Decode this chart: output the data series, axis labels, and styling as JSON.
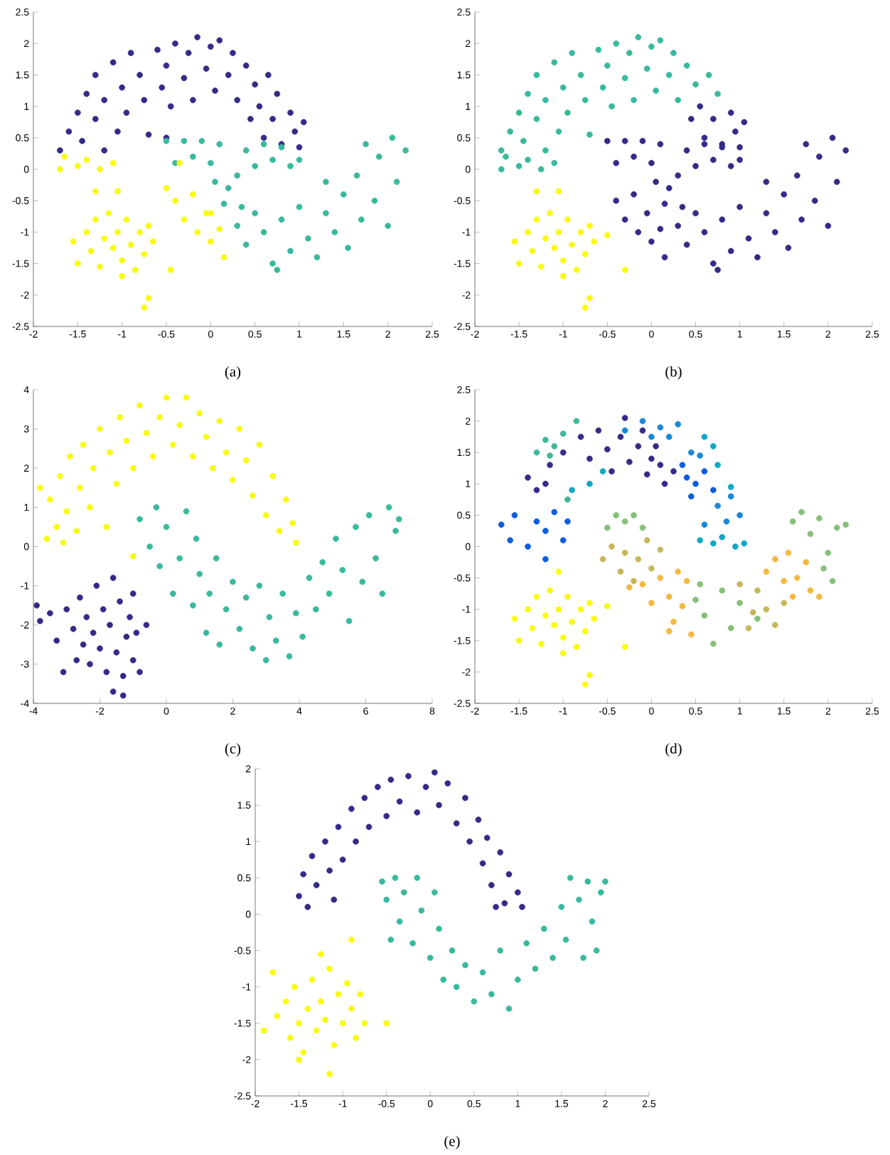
{
  "chart_data": [
    {
      "type": "scatter",
      "annotations": [
        "(a)"
      ],
      "marker": "circle",
      "xlim": [
        -2,
        2.5
      ],
      "ylim": [
        -2.5,
        2.5
      ],
      "xticks": [
        -2,
        -1.5,
        -1,
        -0.5,
        0,
        0.5,
        1,
        1.5,
        2,
        2.5
      ],
      "yticks": [
        -2.5,
        -2,
        -1.5,
        -1,
        -0.5,
        0,
        0.5,
        1,
        1.5,
        2,
        2.5
      ],
      "series": [
        {
          "color": "#352a87",
          "x": [
            -1.7,
            -1.6,
            -1.5,
            -1.45,
            -1.4,
            -1.3,
            -1.3,
            -1.2,
            -1.2,
            -1.1,
            -1.05,
            -1.0,
            -0.95,
            -0.9,
            -0.8,
            -0.75,
            -0.7,
            -0.6,
            -0.55,
            -0.5,
            -0.45,
            -0.4,
            -0.3,
            -0.25,
            -0.2,
            -0.15,
            -0.05,
            0.0,
            0.05,
            0.1,
            0.2,
            0.25,
            0.3,
            0.4,
            0.45,
            0.5,
            0.55,
            0.6,
            0.65,
            0.7,
            0.75,
            0.8,
            0.9,
            0.95,
            1.0,
            1.05,
            -0.5
          ],
          "values": [
            0.3,
            0.6,
            0.9,
            0.45,
            1.2,
            0.8,
            1.5,
            0.3,
            1.1,
            1.7,
            0.6,
            1.3,
            0.9,
            1.85,
            1.5,
            1.1,
            0.55,
            1.9,
            1.3,
            1.65,
            1.0,
            2.0,
            1.45,
            1.85,
            1.1,
            2.1,
            1.6,
            1.95,
            1.25,
            2.05,
            1.5,
            1.85,
            1.1,
            1.65,
            0.8,
            1.35,
            1.0,
            0.5,
            1.5,
            0.8,
            1.2,
            0.4,
            0.9,
            0.6,
            0.35,
            0.75,
            0.5
          ]
        },
        {
          "color": "#38b99b",
          "x": [
            -0.5,
            -0.4,
            -0.3,
            -0.2,
            -0.1,
            0.0,
            0.05,
            0.1,
            0.2,
            0.3,
            0.35,
            0.4,
            0.5,
            0.6,
            0.7,
            0.8,
            0.9,
            1.0,
            0.3,
            0.4,
            0.5,
            0.6,
            0.7,
            0.8,
            0.9,
            1.0,
            1.1,
            1.2,
            1.3,
            1.4,
            1.5,
            1.55,
            1.65,
            1.7,
            1.75,
            1.85,
            1.9,
            2.0,
            2.05,
            2.1,
            2.2,
            1.3,
            0.75,
            0.15
          ],
          "values": [
            0.45,
            0.1,
            0.45,
            0.2,
            0.45,
            0.1,
            -0.2,
            0.4,
            -0.3,
            -0.1,
            -0.6,
            0.3,
            0.05,
            0.4,
            0.15,
            0.35,
            0.05,
            0.15,
            -0.9,
            -1.2,
            -0.7,
            -1.0,
            -1.5,
            -0.8,
            -1.3,
            -0.6,
            -1.1,
            -1.4,
            -0.7,
            -1.0,
            -0.4,
            -1.25,
            -0.1,
            -0.8,
            0.4,
            -0.5,
            0.2,
            -0.9,
            0.5,
            -0.2,
            0.3,
            -0.2,
            -1.6,
            -0.55
          ]
        },
        {
          "color": "#f9fb0e",
          "x": [
            -1.7,
            -1.65,
            -1.5,
            -1.4,
            -1.25,
            -1.1,
            -1.3,
            -1.05,
            -1.55,
            -1.5,
            -1.4,
            -1.35,
            -1.3,
            -1.25,
            -1.2,
            -1.15,
            -1.1,
            -1.05,
            -1.0,
            -0.95,
            -0.9,
            -0.85,
            -0.8,
            -0.75,
            -0.7,
            -0.65,
            -1.0,
            -0.75,
            -0.7,
            -0.45,
            -0.5,
            -0.4,
            -0.35,
            -0.3,
            -0.2,
            -0.15,
            -0.05,
            0.0,
            0.1,
            0.15,
            0.0
          ],
          "values": [
            0.0,
            0.2,
            0.05,
            0.15,
            0.0,
            0.1,
            -0.35,
            -0.35,
            -1.15,
            -1.5,
            -1.0,
            -1.3,
            -0.8,
            -1.55,
            -1.1,
            -0.7,
            -1.25,
            -1.0,
            -1.45,
            -0.8,
            -1.2,
            -1.6,
            -1.0,
            -1.35,
            -0.9,
            -1.15,
            -1.7,
            -2.2,
            -2.05,
            -1.6,
            -0.3,
            -0.5,
            0.1,
            -0.8,
            -0.4,
            -1.0,
            -0.7,
            -1.15,
            -0.95,
            -1.4,
            -0.7
          ]
        }
      ]
    },
    {
      "type": "scatter",
      "annotations": [
        "(b)"
      ],
      "marker": "circle",
      "xlim": [
        -2,
        2.5
      ],
      "ylim": [
        -2.5,
        2.5
      ],
      "xticks": [
        -2,
        -1.5,
        -1,
        -0.5,
        0,
        0.5,
        1,
        1.5,
        2,
        2.5
      ],
      "yticks": [
        -2.5,
        -2,
        -1.5,
        -1,
        -0.5,
        0,
        0.5,
        1,
        1.5,
        2,
        2.5
      ],
      "series": [
        {
          "color": "#38b99b",
          "x": [
            -1.7,
            -1.6,
            -1.5,
            -1.45,
            -1.4,
            -1.3,
            -1.3,
            -1.2,
            -1.2,
            -1.1,
            -1.05,
            -1.0,
            -0.95,
            -0.9,
            -0.8,
            -0.75,
            -0.7,
            -0.6,
            -0.55,
            -0.5,
            -0.45,
            -0.4,
            -0.3,
            -0.25,
            -0.2,
            -0.15,
            -0.05,
            0.0,
            0.05,
            0.1,
            0.2,
            0.25,
            0.3,
            0.4,
            0.5,
            0.65,
            0.75,
            -1.7,
            -1.65,
            -1.5,
            -1.4,
            -1.25,
            -1.1
          ],
          "values": [
            0.3,
            0.6,
            0.9,
            0.45,
            1.2,
            0.8,
            1.5,
            0.3,
            1.1,
            1.7,
            0.6,
            1.3,
            0.9,
            1.85,
            1.5,
            1.1,
            0.55,
            1.9,
            1.3,
            1.65,
            1.0,
            2.0,
            1.45,
            1.85,
            1.1,
            2.1,
            1.6,
            1.95,
            1.25,
            2.05,
            1.5,
            1.85,
            1.1,
            1.65,
            1.35,
            1.5,
            1.2,
            0.0,
            0.2,
            0.05,
            0.15,
            0.0,
            0.1
          ]
        },
        {
          "color": "#352a87",
          "x": [
            0.45,
            0.55,
            0.6,
            0.7,
            0.8,
            0.9,
            0.95,
            1.0,
            1.05,
            -0.5,
            -0.4,
            -0.3,
            -0.2,
            -0.1,
            0.0,
            0.05,
            0.1,
            0.2,
            0.3,
            0.35,
            0.4,
            0.5,
            0.6,
            0.7,
            0.8,
            0.9,
            1.0,
            0.3,
            0.4,
            0.5,
            0.6,
            0.7,
            0.8,
            0.9,
            1.0,
            1.1,
            1.2,
            1.3,
            1.4,
            1.5,
            1.55,
            1.65,
            1.7,
            1.75,
            1.85,
            1.9,
            2.0,
            2.05,
            2.1,
            2.2,
            1.3,
            0.75,
            0.15,
            -0.4,
            -0.3,
            -0.2,
            -0.15,
            -0.05,
            0.0,
            0.1,
            0.15
          ],
          "values": [
            0.8,
            1.0,
            0.5,
            0.8,
            0.4,
            0.9,
            0.6,
            0.35,
            0.75,
            0.45,
            0.1,
            0.45,
            0.2,
            0.45,
            0.1,
            -0.2,
            0.4,
            -0.3,
            -0.1,
            -0.6,
            0.3,
            0.05,
            0.4,
            0.15,
            0.35,
            0.05,
            0.15,
            -0.9,
            -1.2,
            -0.7,
            -1.0,
            -1.5,
            -0.8,
            -1.3,
            -0.6,
            -1.1,
            -1.4,
            -0.7,
            -1.0,
            -0.4,
            -1.25,
            -0.1,
            -0.8,
            0.4,
            -0.5,
            0.2,
            -0.9,
            0.5,
            -0.2,
            0.3,
            -0.2,
            -1.6,
            -0.55,
            -0.5,
            -0.8,
            -0.4,
            -1.0,
            -0.7,
            -1.15,
            -0.95,
            -1.4
          ]
        },
        {
          "color": "#f9fb0e",
          "x": [
            -1.3,
            -1.05,
            -1.55,
            -1.5,
            -1.4,
            -1.35,
            -1.3,
            -1.25,
            -1.2,
            -1.15,
            -1.1,
            -1.05,
            -1.0,
            -0.95,
            -0.9,
            -0.85,
            -0.8,
            -0.75,
            -0.7,
            -0.65,
            -1.0,
            -0.75,
            -0.7,
            -0.3,
            -0.5
          ],
          "values": [
            -0.35,
            -0.35,
            -1.15,
            -1.5,
            -1.0,
            -1.3,
            -0.8,
            -1.55,
            -1.1,
            -0.7,
            -1.25,
            -1.0,
            -1.45,
            -0.8,
            -1.2,
            -1.6,
            -1.0,
            -1.35,
            -0.9,
            -1.15,
            -1.7,
            -2.2,
            -2.05,
            -1.6,
            -1.05
          ]
        }
      ]
    },
    {
      "type": "scatter",
      "annotations": [
        "(c)"
      ],
      "marker": "circle",
      "xlim": [
        -4,
        8
      ],
      "ylim": [
        -4,
        4
      ],
      "xticks": [
        -4,
        -2,
        0,
        2,
        4,
        6,
        8
      ],
      "yticks": [
        -4,
        -3,
        -2,
        -1,
        0,
        1,
        2,
        3,
        4
      ],
      "series": [
        {
          "color": "#f9fb0e",
          "x": [
            -3.8,
            -3.6,
            -3.5,
            -3.3,
            -3.2,
            -3.0,
            -2.9,
            -2.7,
            -2.6,
            -2.5,
            -2.3,
            -2.2,
            -2.0,
            -1.8,
            -1.7,
            -1.5,
            -1.4,
            -1.2,
            -1.0,
            -0.8,
            -0.6,
            -0.4,
            -0.2,
            0,
            0.2,
            0.4,
            0.6,
            0.8,
            1.0,
            1.2,
            1.4,
            1.6,
            1.8,
            2.0,
            2.2,
            2.4,
            2.6,
            2.8,
            3.0,
            3.2,
            3.4,
            3.6,
            3.8,
            3.9,
            -3.1,
            -1.0
          ],
          "values": [
            1.5,
            0.2,
            1.2,
            0.5,
            1.8,
            0.9,
            2.3,
            0.4,
            1.5,
            2.6,
            1.0,
            2.0,
            3.0,
            0.5,
            2.4,
            1.6,
            3.3,
            2.7,
            2.0,
            3.6,
            2.9,
            2.3,
            3.3,
            3.8,
            2.6,
            3.1,
            3.8,
            2.3,
            3.4,
            2.8,
            2.0,
            3.2,
            2.4,
            1.7,
            3.0,
            2.2,
            1.3,
            2.6,
            0.8,
            1.8,
            0.4,
            1.2,
            0.6,
            0.1,
            0.1,
            -0.25
          ]
        },
        {
          "color": "#38b99b",
          "x": [
            -0.8,
            -0.5,
            -0.3,
            -0.2,
            0.0,
            0.2,
            0.4,
            0.6,
            0.8,
            0.9,
            1.0,
            1.2,
            1.3,
            1.5,
            1.6,
            1.8,
            2.0,
            2.2,
            2.4,
            2.6,
            2.8,
            3.0,
            3.1,
            3.3,
            3.5,
            3.7,
            3.9,
            4.1,
            4.3,
            4.5,
            4.7,
            4.9,
            5.1,
            5.3,
            5.5,
            5.7,
            5.9,
            6.1,
            6.3,
            6.5,
            6.7,
            6.9,
            7.0
          ],
          "values": [
            0.7,
            0.0,
            1.0,
            -0.5,
            0.5,
            -1.2,
            -0.3,
            0.9,
            -1.5,
            0.2,
            -0.7,
            -2.2,
            -1.2,
            -0.3,
            -2.5,
            -1.6,
            -0.9,
            -2.1,
            -1.3,
            -2.6,
            -1.0,
            -2.9,
            -1.8,
            -2.4,
            -1.2,
            -2.8,
            -1.7,
            -2.3,
            -0.8,
            -1.6,
            -0.4,
            -1.2,
            0.2,
            -0.6,
            -1.9,
            0.5,
            -0.9,
            0.8,
            -0.3,
            -1.2,
            1.0,
            0.4,
            0.7
          ]
        },
        {
          "color": "#352a87",
          "x": [
            -3.9,
            -3.8,
            -3.5,
            -3.3,
            -3.1,
            -3.0,
            -2.8,
            -2.7,
            -2.6,
            -2.5,
            -2.4,
            -2.3,
            -2.2,
            -2.1,
            -2.0,
            -1.9,
            -1.8,
            -1.7,
            -1.6,
            -1.5,
            -1.4,
            -1.3,
            -1.2,
            -1.1,
            -1.0,
            -0.9,
            -0.8,
            -0.6,
            -1.6,
            -1.3,
            -1.0
          ],
          "values": [
            -1.5,
            -1.9,
            -1.7,
            -2.4,
            -3.2,
            -1.6,
            -2.1,
            -2.9,
            -1.3,
            -2.5,
            -1.8,
            -3.0,
            -2.2,
            -1.0,
            -2.6,
            -1.6,
            -3.2,
            -2.0,
            -0.8,
            -2.7,
            -1.4,
            -3.3,
            -2.3,
            -1.8,
            -2.9,
            -2.2,
            -3.2,
            -2.0,
            -3.7,
            -3.8,
            -1.2
          ]
        }
      ]
    },
    {
      "type": "scatter",
      "annotations": [
        "(d)"
      ],
      "marker": "circle",
      "xlim": [
        -2,
        2.5
      ],
      "ylim": [
        -2.5,
        2.5
      ],
      "xticks": [
        -2,
        -1.5,
        -1,
        -0.5,
        0,
        0.5,
        1,
        1.5,
        2,
        2.5
      ],
      "yticks": [
        -2.5,
        -2,
        -1.5,
        -1,
        -0.5,
        0,
        0.5,
        1,
        1.5,
        2,
        2.5
      ],
      "series": [
        {
          "color": "#352a87",
          "x": [
            -1.4,
            -1.3,
            -1.2,
            -1.15,
            -1.0,
            -0.8,
            -0.7,
            -0.6,
            -0.5,
            -0.45,
            -0.35,
            -0.3,
            -0.25,
            -0.15,
            -0.05,
            0.0,
            0.1,
            0.15,
            0.25,
            -0.1,
            0.05
          ],
          "values": [
            1.1,
            0.9,
            1.0,
            1.3,
            1.5,
            1.75,
            1.4,
            1.85,
            1.55,
            1.2,
            1.75,
            2.05,
            1.35,
            1.6,
            1.15,
            1.4,
            1.3,
            1.0,
            1.2,
            1.85,
            1.6
          ]
        },
        {
          "color": "#0f5cdd",
          "x": [
            -1.7,
            -1.6,
            -1.55,
            -1.4,
            -1.3,
            -1.2,
            -1.1,
            -1.0,
            -0.95,
            -1.2,
            0.4,
            0.45,
            0.5,
            0.35,
            0.6,
            0.7
          ],
          "values": [
            0.35,
            0.1,
            0.5,
            0.0,
            0.4,
            0.25,
            0.55,
            0.1,
            0.4,
            -0.2,
            1.1,
            0.8,
            1.0,
            1.3,
            1.2,
            0.9
          ]
        },
        {
          "color": "#1a88d4",
          "x": [
            -0.1,
            0.1,
            0.2,
            0.0,
            0.3,
            0.45,
            0.55,
            -0.3,
            0.9,
            1.0,
            0.85,
            0.6,
            0.75
          ],
          "values": [
            2.0,
            1.9,
            1.75,
            1.75,
            1.95,
            1.5,
            1.45,
            1.85,
            0.8,
            0.5,
            0.4,
            0.35,
            0.65
          ]
        },
        {
          "color": "#0fa8c4",
          "x": [
            0.6,
            0.7,
            0.75,
            0.9,
            0.55,
            0.7,
            0.8,
            0.95,
            1.05,
            -0.7,
            -0.9,
            -0.55
          ],
          "values": [
            1.75,
            1.6,
            1.3,
            0.95,
            0.1,
            0.05,
            0.15,
            0.0,
            0.05,
            1.0,
            0.9,
            1.2
          ]
        },
        {
          "color": "#3eb89a",
          "x": [
            -1.3,
            -1.2,
            -1.1,
            -1.0,
            -0.85,
            -1.15,
            -0.95
          ],
          "values": [
            1.5,
            1.7,
            1.6,
            1.8,
            2.0,
            1.45,
            0.75
          ]
        },
        {
          "color": "#86bf77",
          "x": [
            -0.5,
            -0.4,
            -0.3,
            -0.2,
            -0.1,
            1.6,
            1.7,
            1.8,
            1.9,
            2.0,
            2.1,
            2.2,
            1.95,
            2.05,
            0.5,
            0.6,
            0.7,
            0.8,
            0.9,
            1.0,
            1.2,
            0.55
          ],
          "values": [
            0.3,
            0.5,
            0.4,
            0.5,
            0.3,
            0.4,
            0.55,
            0.2,
            0.45,
            -0.1,
            0.3,
            0.35,
            -0.35,
            -0.55,
            -0.85,
            -1.1,
            -1.55,
            -0.7,
            -1.3,
            -0.9,
            -1.15,
            -0.6
          ]
        },
        {
          "color": "#c5b75a",
          "x": [
            -0.55,
            -0.45,
            -0.35,
            -0.3,
            -0.2,
            -0.15,
            -0.05,
            0.0,
            0.1,
            1.0,
            1.1,
            1.2,
            1.3,
            1.4,
            1.5,
            1.15
          ],
          "values": [
            -0.2,
            0.0,
            -0.4,
            -0.1,
            -0.55,
            -0.2,
            0.1,
            -0.35,
            -0.05,
            -0.6,
            -1.3,
            -0.7,
            -1.0,
            -1.25,
            -0.9,
            -1.05
          ]
        },
        {
          "color": "#f4b740",
          "x": [
            -0.25,
            -0.1,
            0.0,
            0.1,
            0.2,
            0.25,
            0.3,
            0.35,
            0.4,
            0.2,
            0.45,
            1.3,
            1.4,
            1.5,
            1.55,
            1.65,
            1.75,
            1.8,
            1.9,
            1.6
          ],
          "values": [
            -0.65,
            -0.6,
            -0.9,
            -0.5,
            -0.8,
            -1.2,
            -0.4,
            -0.95,
            -0.55,
            -1.35,
            -1.4,
            -0.4,
            -0.2,
            -0.55,
            -0.1,
            -0.5,
            -0.25,
            -0.7,
            -0.8,
            -0.8
          ]
        },
        {
          "color": "#f9fb0e",
          "x": [
            -1.55,
            -1.5,
            -1.4,
            -1.35,
            -1.3,
            -1.25,
            -1.2,
            -1.15,
            -1.1,
            -1.05,
            -1.0,
            -0.95,
            -0.9,
            -0.85,
            -0.8,
            -0.75,
            -0.7,
            -0.65,
            -1.0,
            -0.75,
            -0.7,
            -0.3,
            -1.05,
            -0.5
          ],
          "values": [
            -1.15,
            -1.5,
            -1.0,
            -1.3,
            -0.8,
            -1.55,
            -1.1,
            -0.7,
            -1.25,
            -1.0,
            -1.45,
            -0.8,
            -1.2,
            -1.6,
            -1.0,
            -1.35,
            -0.9,
            -1.15,
            -1.7,
            -2.2,
            -2.05,
            -1.6,
            -0.4,
            -0.95
          ]
        }
      ]
    },
    {
      "type": "scatter",
      "annotations": [
        "(e)"
      ],
      "marker": "circle",
      "xlim": [
        -2,
        2.5
      ],
      "ylim": [
        -2.5,
        2
      ],
      "xticks": [
        -2,
        -1.5,
        -1,
        -0.5,
        0,
        0.5,
        1,
        1.5,
        2,
        2.5
      ],
      "yticks": [
        -2.5,
        -2,
        -1.5,
        -1,
        -0.5,
        0,
        0.5,
        1,
        1.5,
        2
      ],
      "series": [
        {
          "color": "#352a87",
          "x": [
            -1.5,
            -1.45,
            -1.4,
            -1.35,
            -1.3,
            -1.2,
            -1.15,
            -1.1,
            -1.05,
            -1.0,
            -0.9,
            -0.85,
            -0.75,
            -0.7,
            -0.6,
            -0.5,
            -0.45,
            -0.35,
            -0.25,
            -0.15,
            -0.05,
            0.05,
            0.1,
            0.2,
            0.3,
            0.4,
            0.45,
            0.55,
            0.6,
            0.65,
            0.7,
            0.8,
            0.85,
            0.9,
            1.0,
            1.05,
            0.75
          ],
          "values": [
            0.25,
            0.55,
            0.1,
            0.8,
            0.4,
            1.0,
            0.6,
            0.2,
            1.2,
            0.75,
            1.45,
            1.0,
            1.6,
            1.2,
            1.75,
            1.35,
            1.85,
            1.55,
            1.9,
            1.4,
            1.75,
            1.95,
            1.5,
            1.8,
            1.25,
            1.6,
            1.0,
            1.3,
            0.7,
            1.05,
            0.4,
            0.85,
            0.15,
            0.55,
            0.3,
            0.1,
            0.1
          ]
        },
        {
          "color": "#38b99b",
          "x": [
            -0.55,
            -0.5,
            -0.4,
            -0.35,
            -0.3,
            -0.2,
            -0.15,
            -0.1,
            0.0,
            0.05,
            0.1,
            0.15,
            0.25,
            0.3,
            0.4,
            0.5,
            0.6,
            0.7,
            0.8,
            0.9,
            1.0,
            1.1,
            1.2,
            1.3,
            1.4,
            1.5,
            1.55,
            1.6,
            1.7,
            1.75,
            1.8,
            1.85,
            1.95,
            2.0,
            1.9,
            -0.45
          ],
          "values": [
            0.45,
            0.2,
            0.5,
            -0.1,
            0.3,
            -0.4,
            0.5,
            0.05,
            -0.6,
            0.3,
            -0.2,
            -0.9,
            -0.5,
            -1.0,
            -0.7,
            -1.2,
            -0.8,
            -1.1,
            -0.5,
            -1.3,
            -0.9,
            -0.4,
            -0.75,
            -0.2,
            -0.6,
            0.1,
            -0.35,
            0.5,
            0.2,
            -0.6,
            0.45,
            -0.1,
            0.3,
            0.45,
            -0.5,
            -0.35
          ]
        },
        {
          "color": "#f9fb0e",
          "x": [
            -1.9,
            -1.8,
            -1.75,
            -1.65,
            -1.6,
            -1.55,
            -1.5,
            -1.45,
            -1.4,
            -1.35,
            -1.3,
            -1.25,
            -1.2,
            -1.15,
            -1.1,
            -1.05,
            -1.0,
            -0.95,
            -0.9,
            -0.85,
            -0.8,
            -0.75,
            -1.25,
            -0.9,
            -1.15,
            -0.5,
            -1.5
          ],
          "values": [
            -1.6,
            -0.8,
            -1.4,
            -1.2,
            -1.7,
            -1.0,
            -1.5,
            -1.9,
            -1.3,
            -0.9,
            -1.6,
            -1.2,
            -1.45,
            -0.75,
            -1.8,
            -1.1,
            -1.5,
            -0.95,
            -1.3,
            -1.7,
            -1.1,
            -1.5,
            -0.55,
            -0.35,
            -2.2,
            -1.5,
            -2.0
          ]
        }
      ]
    }
  ]
}
